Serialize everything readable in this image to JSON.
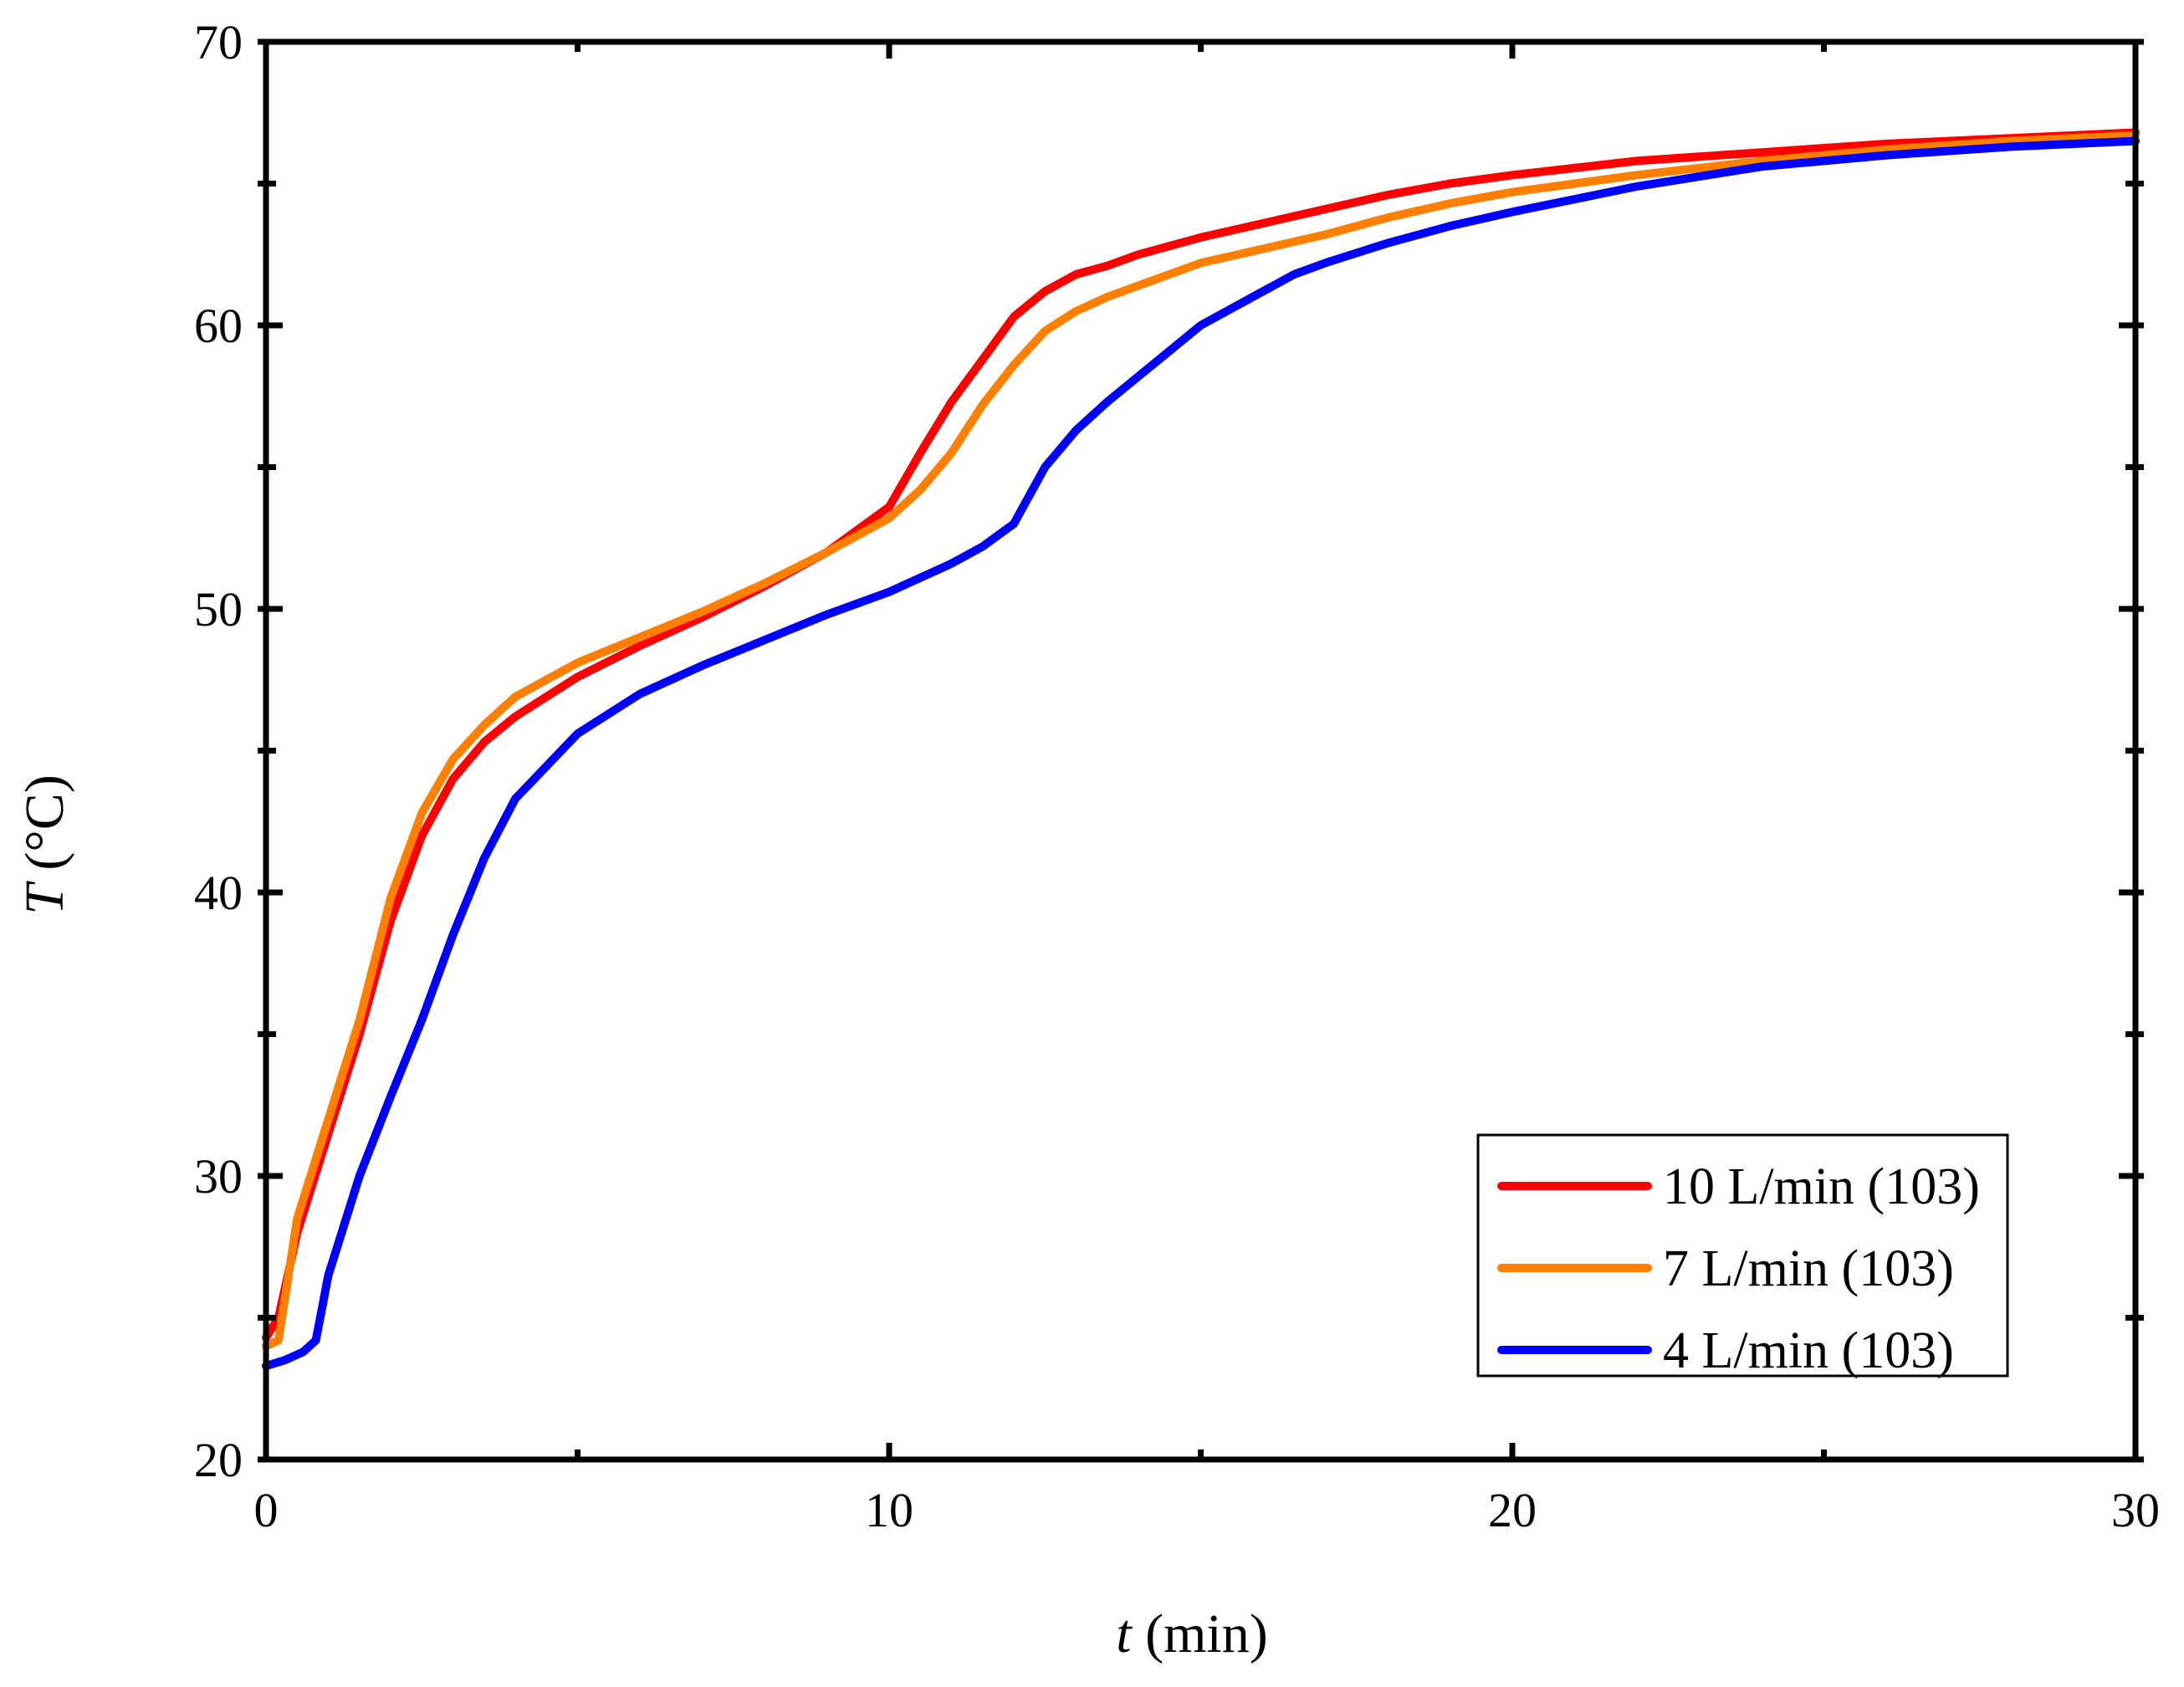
{
  "chart_data": {
    "type": "line",
    "title": "",
    "xlabel": {
      "symbol": "t",
      "unit": "(min)"
    },
    "ylabel": {
      "symbol": "T",
      "unit": "(°C)"
    },
    "xlim": [
      0,
      30
    ],
    "ylim": [
      20,
      70
    ],
    "x_major_ticks": [
      0,
      10,
      20,
      30
    ],
    "x_minor_ticks": [
      5,
      15,
      25
    ],
    "y_major_ticks": [
      20,
      30,
      40,
      50,
      60,
      70
    ],
    "y_minor_ticks": [
      25,
      35,
      45,
      55,
      65
    ],
    "x_tick_labels": [
      "0",
      "10",
      "20",
      "30"
    ],
    "y_tick_labels": [
      "20",
      "30",
      "40",
      "50",
      "60",
      "70"
    ],
    "grid": false,
    "legend_position": "bottom-right",
    "series": [
      {
        "name": "10 L/min (103)",
        "color": "#ff0000",
        "x": [
          0,
          0.2,
          0.5,
          1.0,
          1.5,
          2.0,
          2.5,
          3.0,
          3.5,
          4.0,
          5.0,
          6.0,
          7.0,
          8.0,
          9.0,
          10.0,
          10.5,
          11.0,
          11.5,
          12.0,
          12.5,
          13.0,
          13.5,
          14.0,
          15.0,
          16.0,
          17.0,
          18.0,
          19.0,
          20.0,
          22.0,
          24.0,
          26.0,
          28.0,
          30.0
        ],
        "values": [
          24.3,
          25.0,
          28.0,
          31.5,
          35.0,
          39.0,
          42.0,
          44.0,
          45.3,
          46.2,
          47.6,
          48.7,
          49.7,
          50.8,
          52.0,
          53.6,
          55.5,
          57.3,
          58.8,
          60.3,
          61.2,
          61.8,
          62.1,
          62.5,
          63.1,
          63.6,
          64.1,
          64.6,
          65.0,
          65.3,
          65.8,
          66.1,
          66.4,
          66.6,
          66.8
        ]
      },
      {
        "name": "7 L/min (103)",
        "color": "#ff8000",
        "x": [
          0,
          0.2,
          0.5,
          1.0,
          1.5,
          2.0,
          2.5,
          3.0,
          3.5,
          4.0,
          5.0,
          6.0,
          7.0,
          8.0,
          9.0,
          10.0,
          10.5,
          11.0,
          11.5,
          12.0,
          12.5,
          13.0,
          13.5,
          14.0,
          15.0,
          16.0,
          17.0,
          18.0,
          19.0,
          20.0,
          22.0,
          24.0,
          26.0,
          28.0,
          30.0
        ],
        "values": [
          24.0,
          24.2,
          28.5,
          32.0,
          35.5,
          39.8,
          42.8,
          44.7,
          45.9,
          46.9,
          48.1,
          49.0,
          49.9,
          50.9,
          52.0,
          53.2,
          54.2,
          55.5,
          57.2,
          58.6,
          59.8,
          60.5,
          61.0,
          61.4,
          62.2,
          62.7,
          63.2,
          63.8,
          64.3,
          64.7,
          65.3,
          65.8,
          66.2,
          66.5,
          66.7
        ]
      },
      {
        "name": "4 L/min (103)",
        "color": "#0000ff",
        "x": [
          0,
          0.3,
          0.6,
          0.8,
          1.0,
          1.5,
          2.0,
          2.5,
          3.0,
          3.5,
          4.0,
          5.0,
          6.0,
          7.0,
          8.0,
          9.0,
          10.0,
          11.0,
          11.5,
          12.0,
          12.5,
          13.0,
          13.5,
          14.0,
          14.5,
          15.0,
          16.0,
          16.5,
          17.0,
          18.0,
          19.0,
          20.0,
          22.0,
          24.0,
          26.0,
          28.0,
          30.0
        ],
        "values": [
          23.3,
          23.5,
          23.8,
          24.2,
          26.5,
          30.0,
          32.8,
          35.5,
          38.5,
          41.2,
          43.3,
          45.6,
          47.0,
          48.0,
          48.9,
          49.8,
          50.6,
          51.6,
          52.2,
          53.0,
          55.0,
          56.3,
          57.3,
          58.2,
          59.1,
          60.0,
          61.2,
          61.8,
          62.2,
          62.9,
          63.5,
          64.0,
          64.9,
          65.6,
          66.0,
          66.3,
          66.5
        ]
      }
    ]
  }
}
